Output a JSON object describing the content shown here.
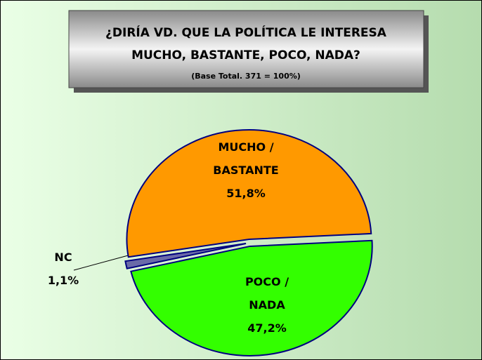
{
  "chart_data": {
    "type": "pie",
    "title": [
      "¿DIRÍA VD. QUE LA POLÍTICA LE INTERESA",
      "MUCHO, BASTANTE, POCO, NADA?"
    ],
    "subtitle": "(Base Total. 371 = 100%)",
    "categories": [
      [
        "MUCHO /",
        "BASTANTE"
      ],
      [
        "NC"
      ],
      [
        "POCO /",
        "NADA"
      ]
    ],
    "values": [
      51.8,
      1.1,
      47.2
    ],
    "value_labels": [
      "51,8%",
      "1,1%",
      "47,2%"
    ],
    "colors": [
      "#ff9900",
      "#6a6aa8",
      "#33ff00"
    ]
  }
}
